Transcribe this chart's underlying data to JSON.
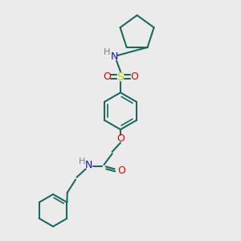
{
  "background_color": "#ebebeb",
  "bond_color": "#1a6b5e",
  "N_color": "#1010ee",
  "O_color": "#ee0000",
  "S_color": "#cccc00",
  "H_color": "#808080",
  "line_width": 1.5,
  "fig_size": [
    3.0,
    3.0
  ],
  "dpi": 100,
  "xlim": [
    0,
    10
  ],
  "ylim": [
    0,
    10
  ]
}
